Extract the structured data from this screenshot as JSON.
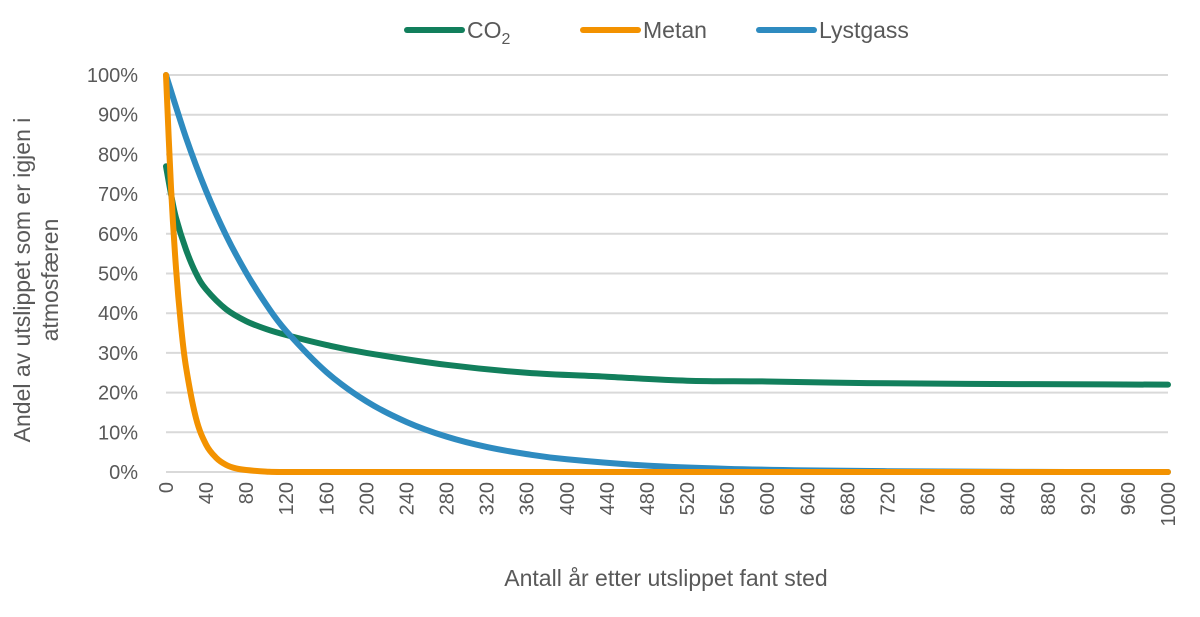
{
  "chart_data": {
    "type": "line",
    "title": "",
    "xlabel": "Antall år etter utslippet fant sted",
    "ylabel_lines": [
      "Andel av utslippet som er igjen i",
      "atmosfæren"
    ],
    "xlim": [
      0,
      1000
    ],
    "ylim": [
      0,
      100
    ],
    "x_ticks": [
      "0",
      "40",
      "80",
      "120",
      "160",
      "200",
      "240",
      "280",
      "320",
      "360",
      "400",
      "440",
      "480",
      "520",
      "560",
      "600",
      "640",
      "680",
      "720",
      "760",
      "800",
      "840",
      "880",
      "920",
      "960",
      "1000"
    ],
    "y_ticks": [
      "0%",
      "10%",
      "20%",
      "30%",
      "40%",
      "50%",
      "60%",
      "70%",
      "80%",
      "90%",
      "100%"
    ],
    "grid": "horizontal",
    "legend_position": "top",
    "series": [
      {
        "name": "CO",
        "subscript": "2",
        "color": "#127F5C",
        "x": [
          0,
          5,
          10,
          20,
          30,
          40,
          60,
          80,
          100,
          120,
          160,
          200,
          280,
          360,
          440,
          520,
          600,
          700,
          800,
          900,
          1000
        ],
        "y": [
          77,
          70,
          64,
          56,
          50,
          46,
          41,
          38,
          36,
          34.5,
          32,
          30,
          27,
          25,
          24,
          23,
          22.8,
          22.4,
          22.2,
          22.1,
          22
        ]
      },
      {
        "name": "Metan",
        "color": "#F39200",
        "x": [
          0,
          5,
          10,
          15,
          20,
          30,
          40,
          50,
          60,
          70,
          80,
          100,
          120,
          200,
          400,
          600,
          800,
          1000
        ],
        "y": [
          100,
          71.7,
          51.3,
          36.8,
          26.4,
          13.5,
          6.9,
          3.6,
          1.8,
          0.9,
          0.5,
          0.1,
          0,
          0,
          0,
          0,
          0,
          0
        ]
      },
      {
        "name": "Lystgass",
        "color": "#2E8BC0",
        "x": [
          0,
          20,
          40,
          60,
          80,
          100,
          120,
          160,
          200,
          240,
          280,
          320,
          360,
          400,
          480,
          560,
          640,
          720,
          800,
          900,
          1000
        ],
        "y": [
          100,
          84.2,
          70.8,
          59.6,
          50.2,
          42.2,
          35.5,
          25.2,
          17.8,
          12.6,
          8.9,
          6.3,
          4.5,
          3.2,
          1.6,
          0.8,
          0.4,
          0.2,
          0.1,
          0,
          0
        ]
      }
    ]
  }
}
